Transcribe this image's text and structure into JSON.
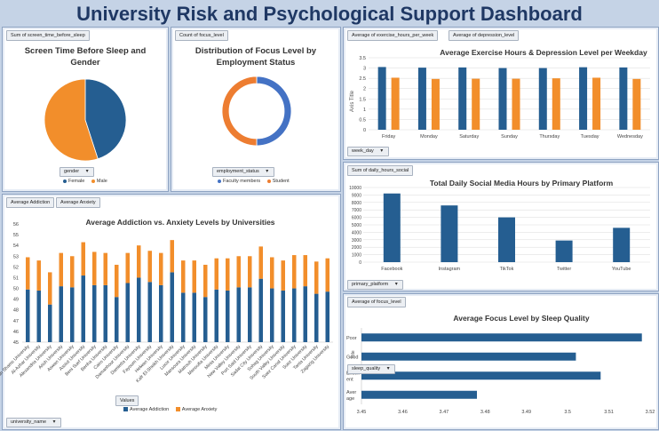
{
  "dashboard": {
    "title": "University Risk and Psychological Support Dashboard"
  },
  "colors": {
    "blue": "#255e91",
    "orange": "#f28e2b",
    "grid": "#d9d9d9"
  },
  "panels": {
    "screen_time": {
      "field_tag": "Sum of screen_time_before_sleep",
      "slicer": "gender",
      "legend": [
        "Female",
        "Male"
      ]
    },
    "focus_employment": {
      "field_tag": "Count of focus_level",
      "slicer": "employment_status",
      "legend": [
        "Faculty members",
        "Student"
      ]
    },
    "exercise_depression": {
      "field_tags": [
        "Average of exercise_hours_per_week",
        "Average of depression_level"
      ],
      "slicer": "week_day"
    },
    "addiction_anxiety": {
      "field_tags": [
        "Average Addiction",
        "Average Anxiety"
      ],
      "values_tag": "Values",
      "slicer": "university_name",
      "legend": [
        "Average Addiction",
        "Average Anxiety"
      ]
    },
    "social_media": {
      "field_tag": "Sum of daily_hours_social",
      "slicer": "primary_platform"
    },
    "focus_sleep": {
      "field_tag": "Average of focus_level",
      "slicer": "sleep_quality"
    }
  },
  "chart_data": [
    {
      "id": "screen_time",
      "type": "pie",
      "title": "Screen Time Before Sleep and Gender",
      "categories": [
        "Female",
        "Male"
      ],
      "values": [
        45,
        55
      ],
      "colors": [
        "#255e91",
        "#f28e2b"
      ]
    },
    {
      "id": "focus_employment",
      "type": "pie",
      "subtype": "doughnut",
      "title": "Distribution of Focus Level by Employment Status",
      "categories": [
        "Faculty members",
        "Student"
      ],
      "values": [
        50,
        50
      ],
      "colors": [
        "#4472c4",
        "#ed7d31"
      ]
    },
    {
      "id": "exercise_depression",
      "type": "bar",
      "title": "Average Exercise Hours & Depression Level per Weekday",
      "ylabel": "Axis Title",
      "categories": [
        "Friday",
        "Monday",
        "Saturday",
        "Sunday",
        "Thursday",
        "Tuesday",
        "Wednesday"
      ],
      "series": [
        {
          "name": "Average of exercise_hours_per_week",
          "values": [
            3.05,
            3.02,
            3.03,
            3.0,
            3.0,
            3.04,
            3.03
          ]
        },
        {
          "name": "Average of depression_level",
          "values": [
            2.53,
            2.47,
            2.48,
            2.48,
            2.5,
            2.53,
            2.47
          ]
        }
      ],
      "ylim": [
        0,
        3.5
      ],
      "yticks": [
        0,
        0.5,
        1,
        1.5,
        2,
        2.5,
        3,
        3.5
      ],
      "ytick_labels": [
        "0",
        "0.5",
        "1",
        "1.5",
        "2",
        "2.5",
        "3",
        "3.5"
      ]
    },
    {
      "id": "addiction_anxiety",
      "type": "bar",
      "subtype": "stacked",
      "title": "Average Addiction vs. Anxiety Levels by Universities",
      "categories": [
        "Ain Shams University",
        "Al-Azhar University",
        "Alexandria University",
        "Arish University",
        "Aswan University",
        "Assiut University",
        "Beni Suef University",
        "Benha University",
        "Cairo University",
        "Damanhour University",
        "Damietta University",
        "Fayoum University",
        "Helwan University",
        "Kafr El-Sheikh University",
        "Luxor University",
        "Mansoura University",
        "Matrouh University",
        "Menoufia University",
        "Minia University",
        "New Valley University",
        "Port Said University",
        "Sadat City University",
        "Sohag University",
        "South Valley University",
        "Suez Canal University",
        "Suez University",
        "Tanta University",
        "Zagazig University"
      ],
      "series": [
        {
          "name": "Average Addiction",
          "values": [
            49.9,
            49.8,
            48.5,
            50.2,
            50.1,
            51.2,
            50.3,
            50.3,
            49.2,
            50.5,
            51.0,
            50.6,
            50.3,
            51.5,
            49.6,
            49.6,
            49.2,
            49.9,
            49.8,
            50.1,
            50.1,
            50.9,
            50.0,
            49.8,
            50.0,
            50.2,
            49.5,
            49.7
          ]
        },
        {
          "name": "Average Anxiety",
          "values": [
            3.0,
            2.8,
            3.0,
            3.1,
            2.9,
            3.1,
            3.1,
            3.0,
            3.0,
            2.8,
            3.0,
            2.9,
            3.0,
            3.0,
            3.0,
            3.0,
            3.0,
            2.9,
            3.0,
            2.9,
            2.9,
            3.0,
            2.9,
            2.8,
            3.1,
            2.9,
            3.0,
            3.1
          ]
        }
      ],
      "ylim": [
        45,
        56
      ],
      "yticks": [
        45,
        46,
        47,
        48,
        49,
        50,
        51,
        52,
        53,
        54,
        55,
        56
      ],
      "ytick_labels": [
        "45",
        "46",
        "47",
        "48",
        "49",
        "50",
        "51",
        "52",
        "53",
        "54",
        "55",
        "56"
      ]
    },
    {
      "id": "social_media",
      "type": "bar",
      "title": "Total Daily Social Media Hours by Primary Platform",
      "categories": [
        "Facebook",
        "Instagram",
        "TikTok",
        "Twitter",
        "YouTube"
      ],
      "values": [
        9200,
        7600,
        6000,
        2900,
        4600
      ],
      "ylim": [
        0,
        10000
      ],
      "yticks": [
        0,
        1000,
        2000,
        3000,
        4000,
        5000,
        6000,
        7000,
        8000,
        9000,
        10000
      ],
      "ytick_labels": [
        "0",
        "1000",
        "2000",
        "3000",
        "4000",
        "5000",
        "6000",
        "7000",
        "8000",
        "9000",
        "10000"
      ]
    },
    {
      "id": "focus_sleep",
      "type": "bar",
      "orientation": "horizontal",
      "title": "Average Focus Level by Sleep Quality",
      "categories": [
        "Poor",
        "Good",
        "Excell ent",
        "Aver age"
      ],
      "category_labels": [
        [
          "Poor"
        ],
        [
          "Good"
        ],
        [
          "Excell",
          "ent"
        ],
        [
          "Aver",
          "age"
        ]
      ],
      "axis_label": "Title",
      "values": [
        3.518,
        3.502,
        3.508,
        3.478
      ],
      "xlim": [
        3.45,
        3.52
      ],
      "xticks": [
        3.45,
        3.46,
        3.47,
        3.48,
        3.49,
        3.5,
        3.51,
        3.52
      ],
      "xtick_labels": [
        "3.45",
        "3.46",
        "3.47",
        "3.48",
        "3.49",
        "3.5",
        "3.51",
        "3.52"
      ]
    }
  ]
}
